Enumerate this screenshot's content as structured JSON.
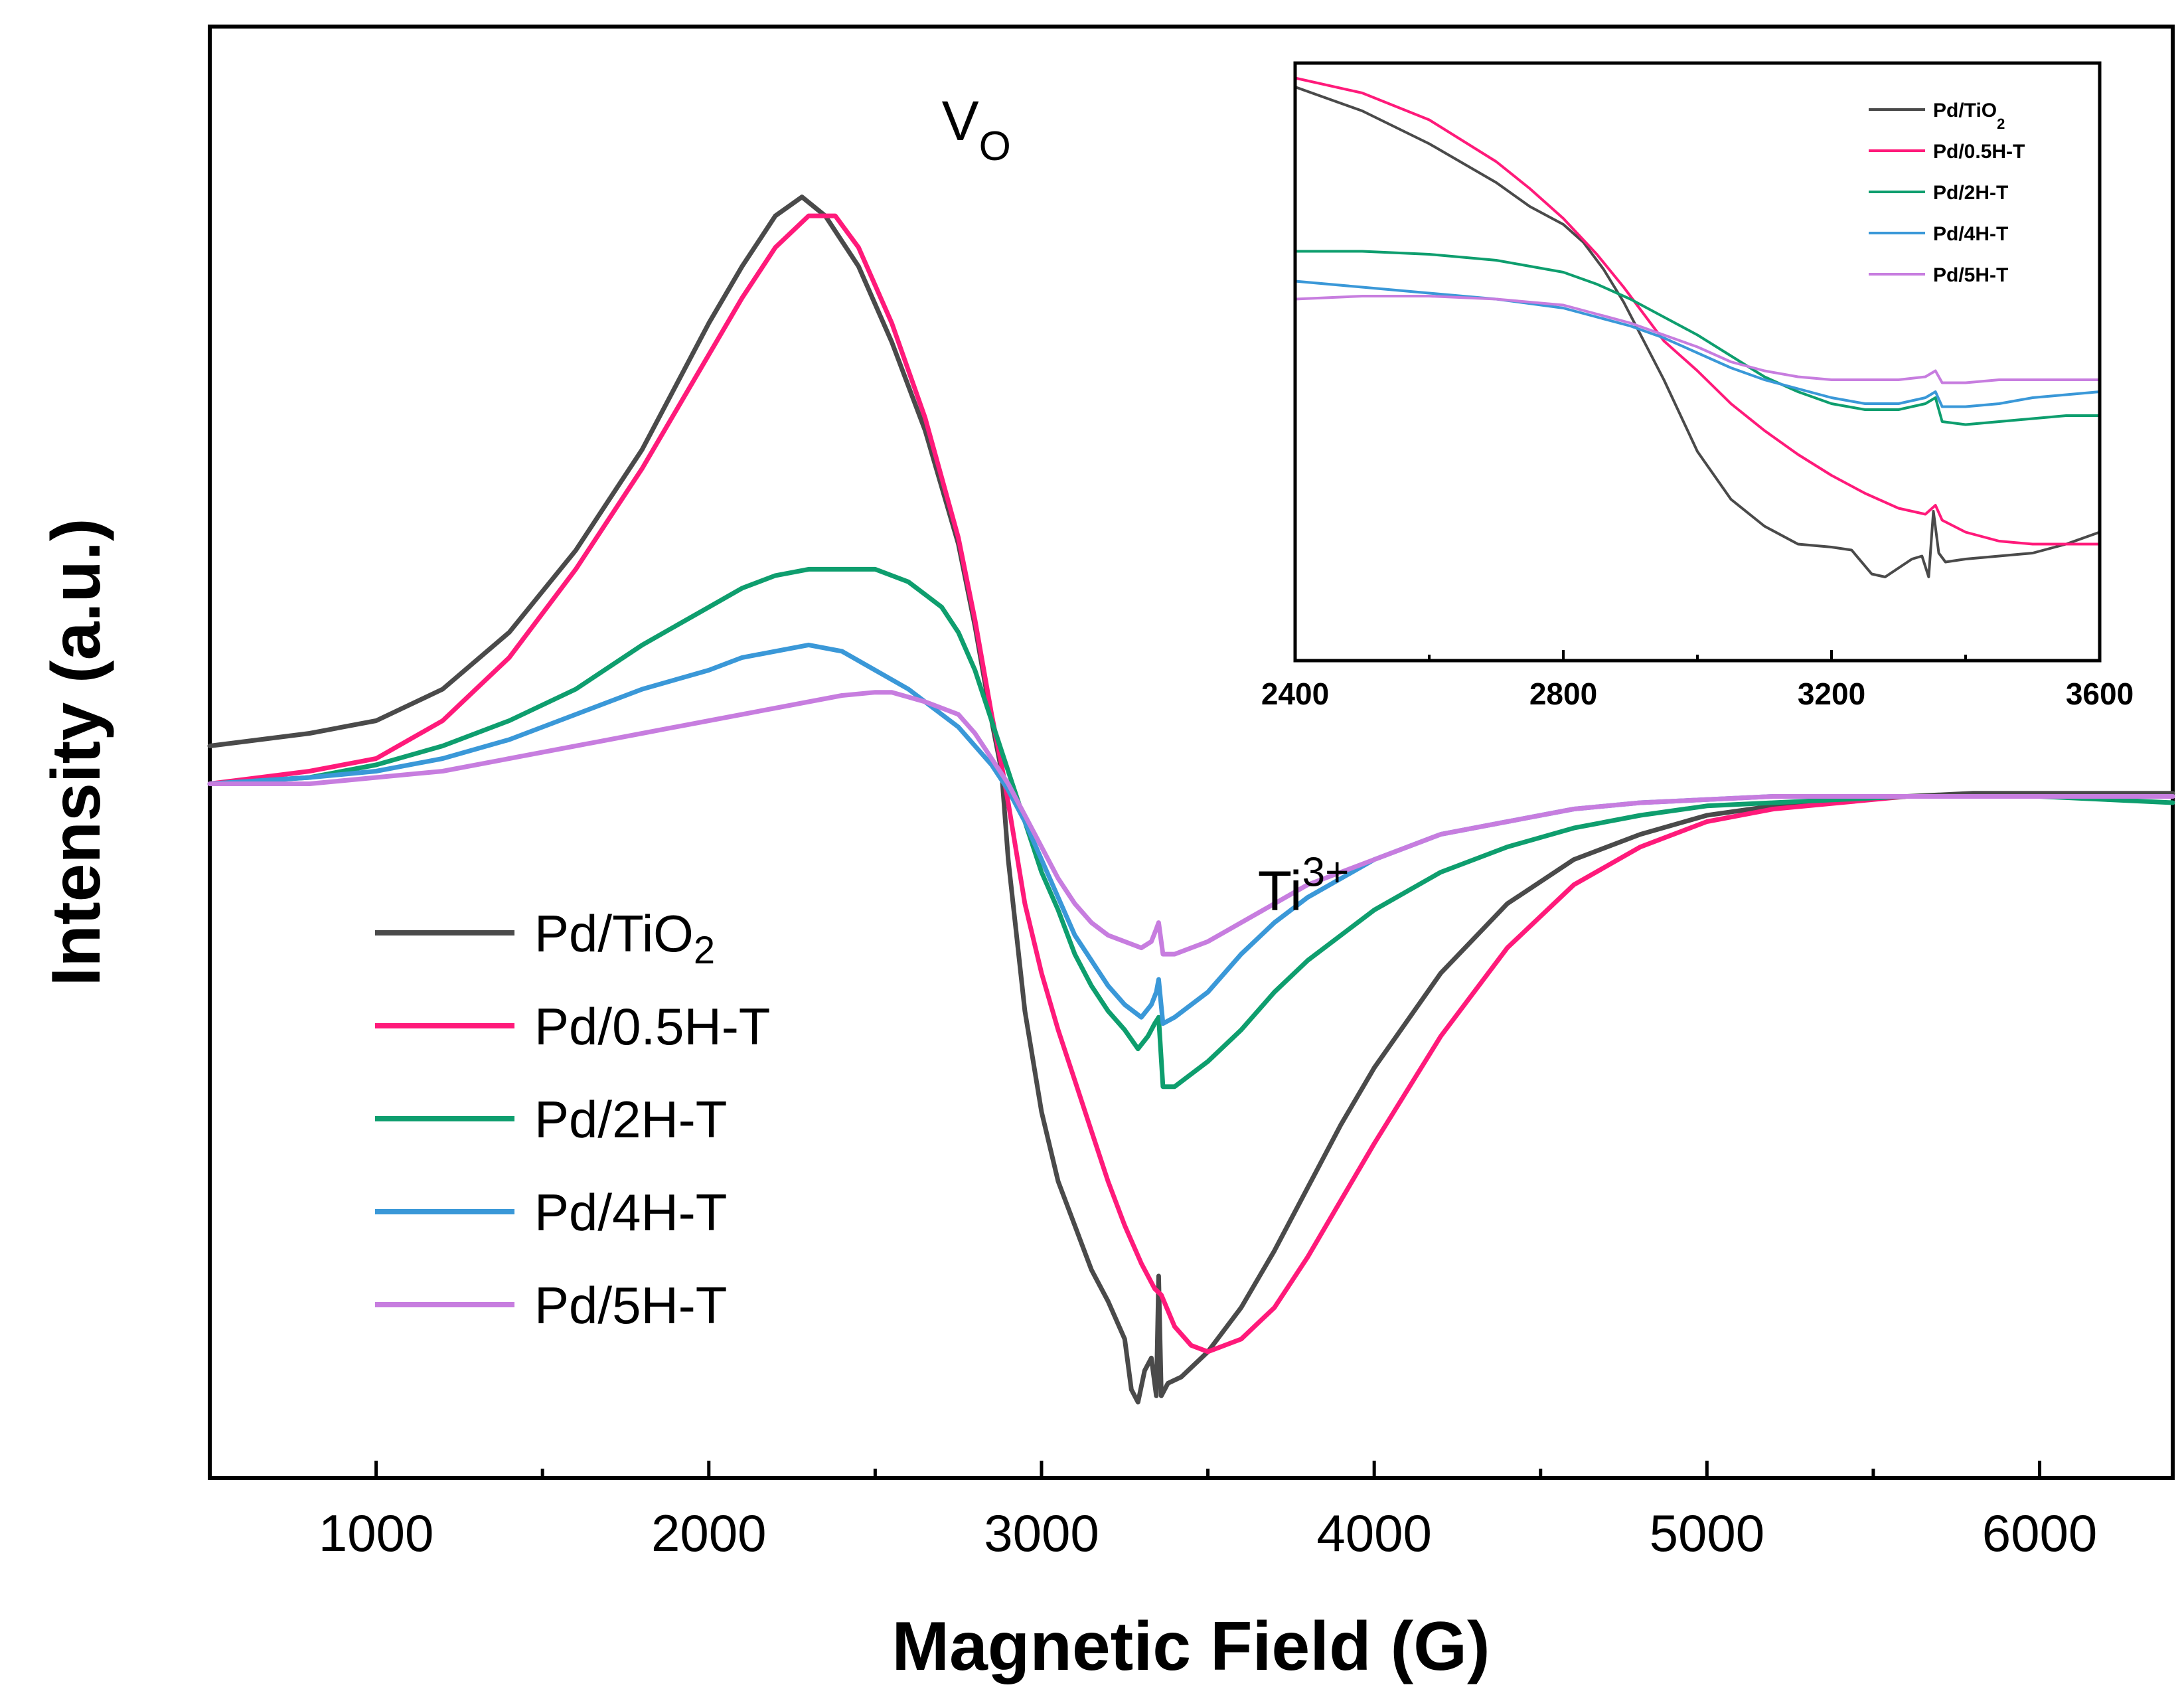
{
  "chart_data": [
    {
      "panel": "main",
      "type": "line",
      "title": "",
      "xlabel": "Magnetic Field (G)",
      "ylabel": "Intensity (a.u.)",
      "xlim": [
        500,
        6400
      ],
      "ylim": [
        -1.1,
        1.2
      ],
      "xticks": [
        1000,
        2000,
        3000,
        4000,
        5000,
        6000
      ],
      "grid": false,
      "legend_position": "bottom-left",
      "annotations": [
        {
          "text": "V",
          "sub": "O",
          "x": 2700,
          "y": 1.02
        },
        {
          "text": "Ti",
          "sup": "3+",
          "x": 3650,
          "y": -0.2
        }
      ],
      "series": [
        {
          "name": "Pd/TiO",
          "name_sub": "2",
          "color": "#4a4a4a",
          "x": [
            500,
            800,
            1000,
            1200,
            1400,
            1600,
            1800,
            2000,
            2100,
            2200,
            2280,
            2350,
            2450,
            2550,
            2650,
            2750,
            2800,
            2850,
            2880,
            2900,
            2950,
            3000,
            3050,
            3100,
            3150,
            3200,
            3250,
            3270,
            3290,
            3310,
            3330,
            3345,
            3352,
            3360,
            3380,
            3420,
            3500,
            3600,
            3700,
            3800,
            3900,
            4000,
            4200,
            4400,
            4600,
            4800,
            5000,
            5200,
            5400,
            5600,
            5800,
            6000,
            6200,
            6400
          ],
          "y": [
            0.06,
            0.08,
            0.1,
            0.15,
            0.24,
            0.37,
            0.53,
            0.73,
            0.82,
            0.9,
            0.93,
            0.9,
            0.82,
            0.7,
            0.56,
            0.38,
            0.25,
            0.1,
            0.02,
            -0.12,
            -0.36,
            -0.52,
            -0.63,
            -0.7,
            -0.77,
            -0.82,
            -0.88,
            -0.96,
            -0.98,
            -0.93,
            -0.91,
            -0.97,
            -0.78,
            -0.97,
            -0.95,
            -0.94,
            -0.9,
            -0.83,
            -0.74,
            -0.64,
            -0.54,
            -0.45,
            -0.3,
            -0.19,
            -0.12,
            -0.08,
            -0.05,
            -0.035,
            -0.025,
            -0.02,
            -0.015,
            -0.015,
            -0.015,
            -0.015
          ]
        },
        {
          "name": "Pd/0.5H-T",
          "name_sub": "",
          "color": "#ff1a7a",
          "x": [
            500,
            800,
            1000,
            1200,
            1400,
            1600,
            1800,
            2000,
            2100,
            2200,
            2300,
            2380,
            2450,
            2550,
            2650,
            2750,
            2800,
            2850,
            2880,
            2900,
            2950,
            3000,
            3050,
            3100,
            3150,
            3200,
            3250,
            3300,
            3340,
            3360,
            3400,
            3450,
            3500,
            3600,
            3700,
            3800,
            3900,
            4000,
            4200,
            4400,
            4600,
            4800,
            5000,
            5200,
            5400,
            5600,
            5800,
            6000,
            6200,
            6400
          ],
          "y": [
            0.0,
            0.02,
            0.04,
            0.1,
            0.2,
            0.34,
            0.5,
            0.68,
            0.77,
            0.85,
            0.9,
            0.9,
            0.85,
            0.73,
            0.58,
            0.39,
            0.26,
            0.11,
            0.03,
            -0.03,
            -0.19,
            -0.3,
            -0.39,
            -0.47,
            -0.55,
            -0.63,
            -0.7,
            -0.76,
            -0.8,
            -0.81,
            -0.86,
            -0.89,
            -0.9,
            -0.88,
            -0.83,
            -0.75,
            -0.66,
            -0.57,
            -0.4,
            -0.26,
            -0.16,
            -0.1,
            -0.06,
            -0.04,
            -0.03,
            -0.02,
            -0.02,
            -0.02,
            -0.02,
            -0.02
          ]
        },
        {
          "name": "Pd/2H-T",
          "name_sub": "",
          "color": "#0e9e6e",
          "x": [
            500,
            800,
            1000,
            1200,
            1400,
            1600,
            1800,
            2000,
            2100,
            2200,
            2300,
            2400,
            2500,
            2600,
            2700,
            2750,
            2800,
            2850,
            2900,
            2950,
            3000,
            3050,
            3100,
            3150,
            3200,
            3250,
            3290,
            3320,
            3340,
            3352,
            3365,
            3400,
            3450,
            3500,
            3600,
            3700,
            3800,
            4000,
            4200,
            4400,
            4600,
            4800,
            5000,
            5200,
            5400,
            5600,
            5800,
            6000,
            6200,
            6400
          ],
          "y": [
            0.0,
            0.01,
            0.03,
            0.06,
            0.1,
            0.15,
            0.22,
            0.28,
            0.31,
            0.33,
            0.34,
            0.34,
            0.34,
            0.32,
            0.28,
            0.24,
            0.18,
            0.1,
            0.02,
            -0.06,
            -0.14,
            -0.2,
            -0.27,
            -0.32,
            -0.36,
            -0.39,
            -0.42,
            -0.4,
            -0.38,
            -0.37,
            -0.48,
            -0.48,
            -0.46,
            -0.44,
            -0.39,
            -0.33,
            -0.28,
            -0.2,
            -0.14,
            -0.1,
            -0.07,
            -0.05,
            -0.035,
            -0.03,
            -0.025,
            -0.02,
            -0.02,
            -0.02,
            -0.025,
            -0.03
          ]
        },
        {
          "name": "Pd/4H-T",
          "name_sub": "",
          "color": "#3a98d8",
          "x": [
            500,
            800,
            1000,
            1200,
            1400,
            1600,
            1800,
            2000,
            2100,
            2200,
            2300,
            2400,
            2500,
            2600,
            2700,
            2750,
            2800,
            2850,
            2900,
            2950,
            3000,
            3050,
            3100,
            3150,
            3200,
            3250,
            3300,
            3330,
            3345,
            3352,
            3365,
            3400,
            3450,
            3500,
            3600,
            3700,
            3800,
            4000,
            4200,
            4400,
            4600,
            4800,
            5000,
            5200,
            5400,
            5600,
            5800,
            6000,
            6200,
            6400
          ],
          "y": [
            0.0,
            0.01,
            0.02,
            0.04,
            0.07,
            0.11,
            0.15,
            0.18,
            0.2,
            0.21,
            0.22,
            0.21,
            0.18,
            0.15,
            0.11,
            0.09,
            0.06,
            0.03,
            -0.01,
            -0.06,
            -0.12,
            -0.18,
            -0.24,
            -0.28,
            -0.32,
            -0.35,
            -0.37,
            -0.35,
            -0.33,
            -0.31,
            -0.38,
            -0.37,
            -0.35,
            -0.33,
            -0.27,
            -0.22,
            -0.18,
            -0.12,
            -0.08,
            -0.06,
            -0.04,
            -0.03,
            -0.025,
            -0.02,
            -0.02,
            -0.02,
            -0.02,
            -0.02,
            -0.02,
            -0.02
          ]
        },
        {
          "name": "Pd/5H-T",
          "name_sub": "",
          "color": "#c77ddf",
          "x": [
            500,
            800,
            1000,
            1200,
            1400,
            1600,
            1800,
            2000,
            2100,
            2200,
            2300,
            2400,
            2500,
            2550,
            2650,
            2750,
            2800,
            2850,
            2900,
            2950,
            3000,
            3050,
            3100,
            3150,
            3200,
            3250,
            3300,
            3330,
            3345,
            3352,
            3365,
            3400,
            3500,
            3600,
            3700,
            3800,
            4000,
            4200,
            4400,
            4600,
            4800,
            5000,
            5200,
            5400,
            5600,
            5800,
            6000,
            6200,
            6400
          ],
          "y": [
            0.0,
            0.0,
            0.01,
            0.02,
            0.04,
            0.06,
            0.08,
            0.1,
            0.11,
            0.12,
            0.13,
            0.14,
            0.145,
            0.145,
            0.13,
            0.11,
            0.08,
            0.04,
            0.0,
            -0.05,
            -0.1,
            -0.15,
            -0.19,
            -0.22,
            -0.24,
            -0.25,
            -0.26,
            -0.25,
            -0.23,
            -0.22,
            -0.27,
            -0.27,
            -0.25,
            -0.22,
            -0.19,
            -0.16,
            -0.12,
            -0.08,
            -0.06,
            -0.04,
            -0.03,
            -0.025,
            -0.02,
            -0.02,
            -0.02,
            -0.02,
            -0.02,
            -0.02,
            -0.02
          ]
        }
      ]
    },
    {
      "panel": "inset",
      "type": "line",
      "title": "",
      "xlabel": "",
      "ylabel": "",
      "xlim": [
        2400,
        3600
      ],
      "ylim": [
        -1.0,
        1.0
      ],
      "xticks": [
        2400,
        2800,
        3200,
        3600
      ],
      "grid": false,
      "legend_position": "top-right",
      "series": [
        {
          "name": "Pd/TiO",
          "name_sub": "2",
          "color": "#4a4a4a",
          "x": [
            2400,
            2500,
            2600,
            2700,
            2750,
            2800,
            2830,
            2860,
            2890,
            2920,
            2950,
            3000,
            3050,
            3100,
            3150,
            3200,
            3230,
            3260,
            3280,
            3300,
            3320,
            3335,
            3345,
            3352,
            3360,
            3370,
            3400,
            3450,
            3500,
            3550,
            3600
          ],
          "y": [
            0.92,
            0.84,
            0.73,
            0.6,
            0.52,
            0.46,
            0.4,
            0.31,
            0.2,
            0.07,
            -0.06,
            -0.3,
            -0.46,
            -0.55,
            -0.61,
            -0.62,
            -0.63,
            -0.71,
            -0.72,
            -0.69,
            -0.66,
            -0.65,
            -0.72,
            -0.5,
            -0.64,
            -0.67,
            -0.66,
            -0.65,
            -0.64,
            -0.61,
            -0.57
          ]
        },
        {
          "name": "Pd/0.5H-T",
          "name_sub": "",
          "color": "#ff1a7a",
          "x": [
            2400,
            2500,
            2600,
            2700,
            2750,
            2800,
            2850,
            2890,
            2920,
            2950,
            3000,
            3050,
            3100,
            3150,
            3200,
            3250,
            3300,
            3340,
            3355,
            3365,
            3400,
            3450,
            3500,
            3550,
            3600
          ],
          "y": [
            0.95,
            0.9,
            0.81,
            0.67,
            0.58,
            0.48,
            0.36,
            0.25,
            0.16,
            0.07,
            -0.03,
            -0.14,
            -0.23,
            -0.31,
            -0.38,
            -0.44,
            -0.49,
            -0.51,
            -0.48,
            -0.53,
            -0.57,
            -0.6,
            -0.61,
            -0.61,
            -0.61
          ]
        },
        {
          "name": "Pd/2H-T",
          "name_sub": "",
          "color": "#0e9e6e",
          "x": [
            2400,
            2500,
            2600,
            2700,
            2800,
            2850,
            2900,
            2950,
            3000,
            3050,
            3100,
            3150,
            3200,
            3250,
            3300,
            3340,
            3355,
            3365,
            3400,
            3450,
            3500,
            3550,
            3600
          ],
          "y": [
            0.37,
            0.37,
            0.36,
            0.34,
            0.3,
            0.26,
            0.21,
            0.15,
            0.09,
            0.02,
            -0.05,
            -0.1,
            -0.14,
            -0.16,
            -0.16,
            -0.14,
            -0.12,
            -0.2,
            -0.21,
            -0.2,
            -0.19,
            -0.18,
            -0.18
          ]
        },
        {
          "name": "Pd/4H-T",
          "name_sub": "",
          "color": "#3a98d8",
          "x": [
            2400,
            2500,
            2600,
            2700,
            2800,
            2850,
            2900,
            2950,
            3000,
            3050,
            3100,
            3150,
            3200,
            3250,
            3300,
            3340,
            3355,
            3365,
            3400,
            3450,
            3500,
            3550,
            3600
          ],
          "y": [
            0.27,
            0.25,
            0.23,
            0.21,
            0.18,
            0.15,
            0.12,
            0.08,
            0.03,
            -0.02,
            -0.06,
            -0.09,
            -0.12,
            -0.14,
            -0.14,
            -0.12,
            -0.1,
            -0.15,
            -0.15,
            -0.14,
            -0.12,
            -0.11,
            -0.1
          ]
        },
        {
          "name": "Pd/5H-T",
          "name_sub": "",
          "color": "#c77ddf",
          "x": [
            2400,
            2500,
            2600,
            2700,
            2800,
            2850,
            2900,
            2950,
            3000,
            3050,
            3100,
            3150,
            3200,
            3250,
            3300,
            3340,
            3355,
            3365,
            3400,
            3450,
            3500,
            3550,
            3600
          ],
          "y": [
            0.21,
            0.22,
            0.22,
            0.21,
            0.19,
            0.16,
            0.13,
            0.09,
            0.05,
            0.0,
            -0.03,
            -0.05,
            -0.06,
            -0.06,
            -0.06,
            -0.05,
            -0.03,
            -0.07,
            -0.07,
            -0.06,
            -0.06,
            -0.06,
            -0.06
          ]
        }
      ]
    }
  ]
}
